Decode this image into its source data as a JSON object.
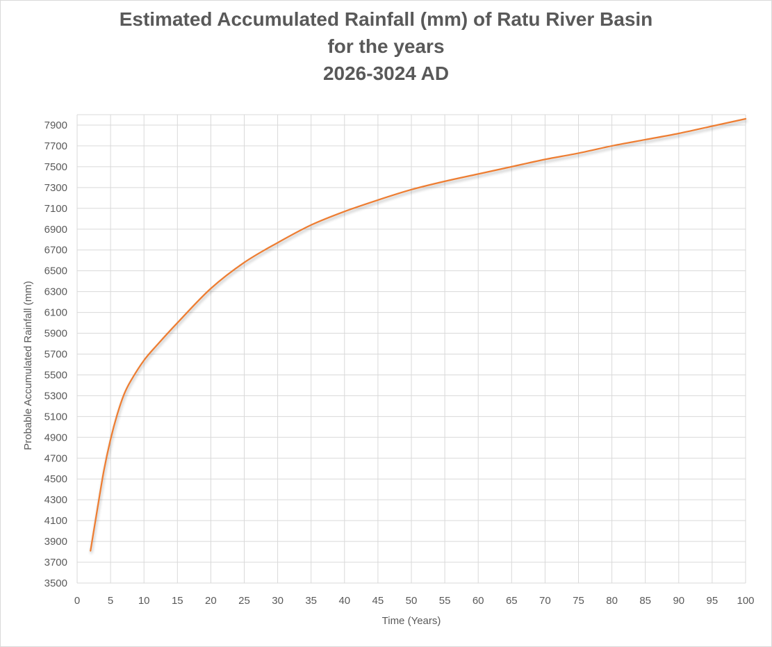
{
  "chart_data": {
    "type": "line",
    "title_lines": [
      "Estimated Accumulated Rainfall (mm) of Ratu River Basin",
      "for the years",
      "2026-3024 AD"
    ],
    "xlabel": "Time (Years)",
    "ylabel": "Probable Accumulated Rainfall (mm)",
    "xlim": [
      0,
      100
    ],
    "ylim": [
      3500,
      8000
    ],
    "x_ticks": [
      0,
      5,
      10,
      15,
      20,
      25,
      30,
      35,
      40,
      45,
      50,
      55,
      60,
      65,
      70,
      75,
      80,
      85,
      90,
      95,
      100
    ],
    "y_ticks": [
      3500,
      3700,
      3900,
      4100,
      4300,
      4500,
      4700,
      4900,
      5100,
      5300,
      5500,
      5700,
      5900,
      6100,
      6300,
      6500,
      6700,
      6900,
      7100,
      7300,
      7500,
      7700,
      7900
    ],
    "grid": true,
    "series": [
      {
        "color": "#ed7d31",
        "x": [
          2,
          3,
          4,
          5,
          6,
          7,
          8,
          10,
          12,
          15,
          20,
          25,
          30,
          35,
          40,
          45,
          50,
          55,
          60,
          65,
          70,
          75,
          80,
          85,
          90,
          95,
          100
        ],
        "y": [
          3810,
          4200,
          4580,
          4880,
          5120,
          5310,
          5440,
          5640,
          5790,
          6000,
          6330,
          6580,
          6770,
          6940,
          7070,
          7180,
          7280,
          7360,
          7430,
          7500,
          7570,
          7630,
          7700,
          7760,
          7820,
          7890,
          7960
        ]
      }
    ]
  }
}
